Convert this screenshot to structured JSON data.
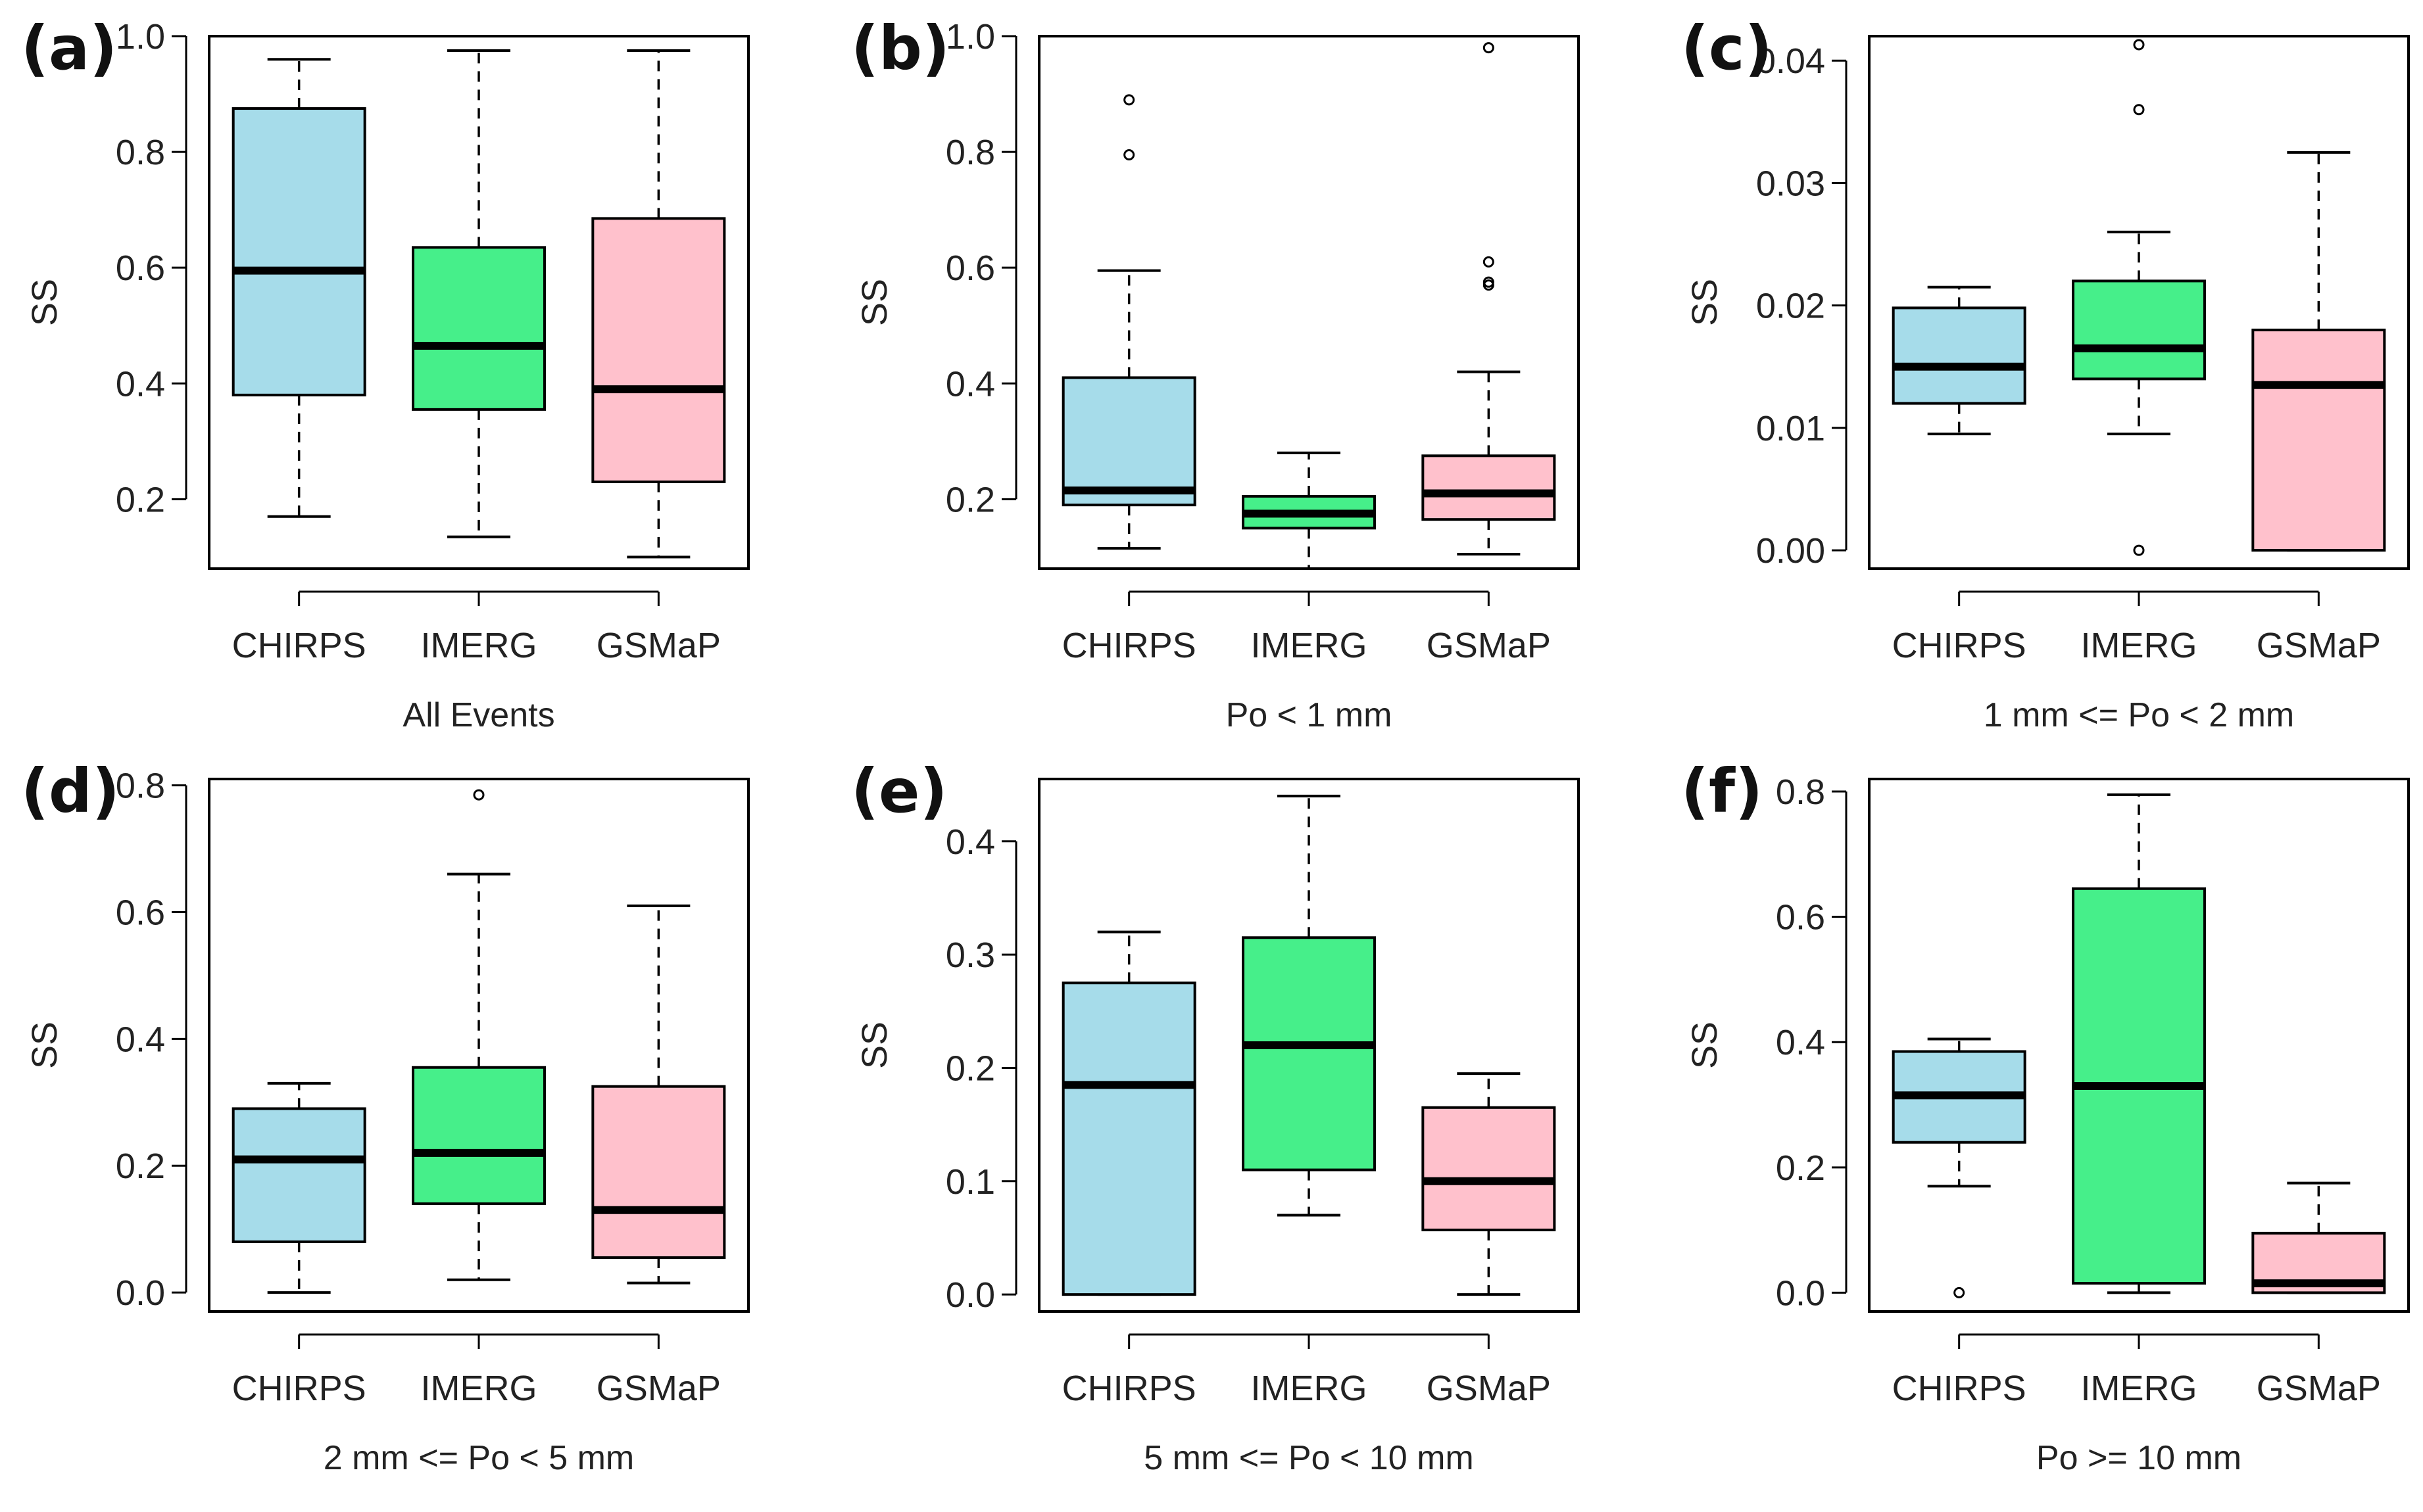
{
  "chart_data": [
    {
      "type": "boxplot",
      "panel_label": "(a)",
      "xlabel": "All Events",
      "ylabel": "SS",
      "categories": [
        "CHIRPS",
        "IMERG",
        "GSMaP"
      ],
      "colors": [
        "#a6dcea",
        "#46ef8a",
        "#ffc1cc"
      ],
      "ylim": [
        0.08,
        1.0
      ],
      "yticks": [
        0.2,
        0.4,
        0.6,
        0.8,
        1.0
      ],
      "tick_labels": [
        "0.2",
        "0.4",
        "0.6",
        "0.8",
        "1.0"
      ],
      "boxes": [
        {
          "whisker_low": 0.17,
          "q1": 0.38,
          "median": 0.595,
          "q3": 0.875,
          "whisker_high": 0.96,
          "outliers": []
        },
        {
          "whisker_low": 0.135,
          "q1": 0.355,
          "median": 0.465,
          "q3": 0.635,
          "whisker_high": 0.975,
          "outliers": []
        },
        {
          "whisker_low": 0.1,
          "q1": 0.23,
          "median": 0.39,
          "q3": 0.685,
          "whisker_high": 0.975,
          "outliers": []
        }
      ]
    },
    {
      "type": "boxplot",
      "panel_label": "(b)",
      "xlabel": "Po < 1 mm",
      "ylabel": "SS",
      "categories": [
        "CHIRPS",
        "IMERG",
        "GSMaP"
      ],
      "colors": [
        "#a6dcea",
        "#46ef8a",
        "#ffc1cc"
      ],
      "ylim": [
        0.08,
        1.0
      ],
      "yticks": [
        0.2,
        0.4,
        0.6,
        0.8,
        1.0
      ],
      "tick_labels": [
        "0.2",
        "0.4",
        "0.6",
        "0.8",
        "1.0"
      ],
      "boxes": [
        {
          "whisker_low": 0.115,
          "q1": 0.19,
          "median": 0.215,
          "q3": 0.41,
          "whisker_high": 0.595,
          "outliers": [
            0.795,
            0.89
          ]
        },
        {
          "whisker_low": 0.08,
          "q1": 0.15,
          "median": 0.175,
          "q3": 0.205,
          "whisker_high": 0.28,
          "outliers": []
        },
        {
          "whisker_low": 0.105,
          "q1": 0.165,
          "median": 0.21,
          "q3": 0.275,
          "whisker_high": 0.42,
          "outliers": [
            0.57,
            0.575,
            0.61,
            0.98
          ]
        }
      ]
    },
    {
      "type": "boxplot",
      "panel_label": "(c)",
      "xlabel": "1 mm <= Po < 2 mm",
      "ylabel": "SS",
      "categories": [
        "CHIRPS",
        "IMERG",
        "GSMaP"
      ],
      "colors": [
        "#a6dcea",
        "#46ef8a",
        "#ffc1cc"
      ],
      "ylim": [
        -0.0015,
        0.042
      ],
      "yticks": [
        0.0,
        0.01,
        0.02,
        0.03,
        0.04
      ],
      "tick_labels": [
        "0.00",
        "0.01",
        "0.02",
        "0.03",
        "0.04"
      ],
      "boxes": [
        {
          "whisker_low": 0.0095,
          "q1": 0.012,
          "median": 0.015,
          "q3": 0.0198,
          "whisker_high": 0.0215,
          "outliers": []
        },
        {
          "whisker_low": 0.0095,
          "q1": 0.014,
          "median": 0.0165,
          "q3": 0.022,
          "whisker_high": 0.026,
          "outliers": [
            0.0,
            0.036,
            0.0413
          ]
        },
        {
          "whisker_low": 0.0,
          "q1": 0.0,
          "median": 0.0135,
          "q3": 0.018,
          "whisker_high": 0.0325,
          "outliers": []
        }
      ]
    },
    {
      "type": "boxplot",
      "panel_label": "(d)",
      "xlabel": "2 mm <= Po < 5 mm",
      "ylabel": "SS",
      "categories": [
        "CHIRPS",
        "IMERG",
        "GSMaP"
      ],
      "colors": [
        "#a6dcea",
        "#46ef8a",
        "#ffc1cc"
      ],
      "ylim": [
        -0.03,
        0.81
      ],
      "yticks": [
        0.0,
        0.2,
        0.4,
        0.6,
        0.8
      ],
      "tick_labels": [
        "0.0",
        "0.2",
        "0.4",
        "0.6",
        "0.8"
      ],
      "boxes": [
        {
          "whisker_low": 0.0,
          "q1": 0.08,
          "median": 0.21,
          "q3": 0.29,
          "whisker_high": 0.33,
          "outliers": []
        },
        {
          "whisker_low": 0.02,
          "q1": 0.14,
          "median": 0.22,
          "q3": 0.355,
          "whisker_high": 0.66,
          "outliers": [
            0.785
          ]
        },
        {
          "whisker_low": 0.015,
          "q1": 0.055,
          "median": 0.13,
          "q3": 0.325,
          "whisker_high": 0.61,
          "outliers": []
        }
      ]
    },
    {
      "type": "boxplot",
      "panel_label": "(e)",
      "xlabel": "5 mm <= Po < 10 mm",
      "ylabel": "SS",
      "categories": [
        "CHIRPS",
        "IMERG",
        "GSMaP"
      ],
      "colors": [
        "#a6dcea",
        "#46ef8a",
        "#ffc1cc"
      ],
      "ylim": [
        -0.015,
        0.455
      ],
      "yticks": [
        0.0,
        0.1,
        0.2,
        0.3,
        0.4
      ],
      "tick_labels": [
        "0.0",
        "0.1",
        "0.2",
        "0.3",
        "0.4"
      ],
      "boxes": [
        {
          "whisker_low": 0.0,
          "q1": 0.0,
          "median": 0.185,
          "q3": 0.275,
          "whisker_high": 0.32,
          "outliers": []
        },
        {
          "whisker_low": 0.07,
          "q1": 0.11,
          "median": 0.22,
          "q3": 0.315,
          "whisker_high": 0.44,
          "outliers": []
        },
        {
          "whisker_low": 0.0,
          "q1": 0.057,
          "median": 0.1,
          "q3": 0.165,
          "whisker_high": 0.195,
          "outliers": []
        }
      ]
    },
    {
      "type": "boxplot",
      "panel_label": "(f)",
      "xlabel": "Po >= 10 mm",
      "ylabel": "SS",
      "categories": [
        "CHIRPS",
        "IMERG",
        "GSMaP"
      ],
      "colors": [
        "#a6dcea",
        "#46ef8a",
        "#ffc1cc"
      ],
      "ylim": [
        -0.03,
        0.82
      ],
      "yticks": [
        0.0,
        0.2,
        0.4,
        0.6,
        0.8
      ],
      "tick_labels": [
        "0.0",
        "0.2",
        "0.4",
        "0.6",
        "0.8"
      ],
      "boxes": [
        {
          "whisker_low": 0.17,
          "q1": 0.24,
          "median": 0.315,
          "q3": 0.385,
          "whisker_high": 0.405,
          "outliers": [
            0.0
          ]
        },
        {
          "whisker_low": 0.0,
          "q1": 0.015,
          "median": 0.33,
          "q3": 0.645,
          "whisker_high": 0.795,
          "outliers": []
        },
        {
          "whisker_low": 0.0,
          "q1": 0.0,
          "median": 0.015,
          "q3": 0.095,
          "whisker_high": 0.175,
          "outliers": []
        }
      ]
    }
  ]
}
